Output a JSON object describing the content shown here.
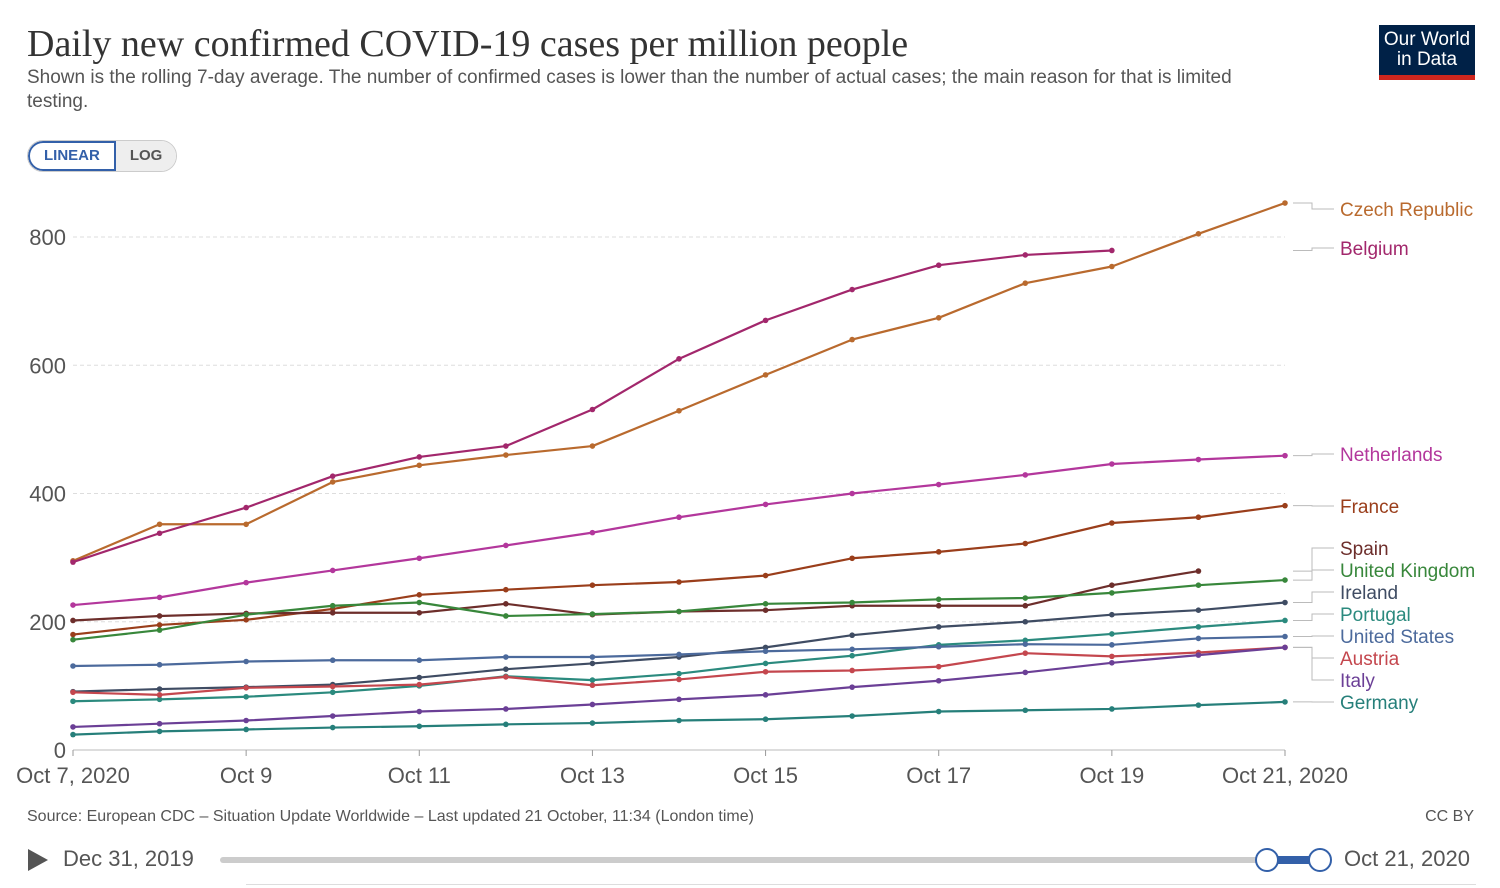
{
  "header": {
    "title": "Daily new confirmed COVID-19 cases per million people",
    "subtitle": "Shown is the rolling 7-day average. The number of confirmed cases is lower than the number of actual cases; the main reason for that is limited testing.",
    "logo_line1": "Our World",
    "logo_line2": "in Data"
  },
  "scale_toggle": {
    "linear_label": "LINEAR",
    "log_label": "LOG",
    "selected": "linear"
  },
  "footer": {
    "source": "Source: European CDC – Situation Update Worldwide – Last updated 21 October, 11:34 (London time)",
    "license": "CC BY"
  },
  "timeline": {
    "start_label": "Dec 31, 2019",
    "end_label": "Oct 21, 2020"
  },
  "chart_data": {
    "type": "line",
    "x": [
      "Oct 7",
      "Oct 8",
      "Oct 9",
      "Oct 10",
      "Oct 11",
      "Oct 12",
      "Oct 13",
      "Oct 14",
      "Oct 15",
      "Oct 16",
      "Oct 17",
      "Oct 18",
      "Oct 19",
      "Oct 20",
      "Oct 21"
    ],
    "x_tick_labels": [
      "Oct 7, 2020",
      "Oct 9",
      "Oct 11",
      "Oct 13",
      "Oct 15",
      "Oct 17",
      "Oct 19",
      "Oct 21, 2020"
    ],
    "x_tick_indices": [
      0,
      2,
      4,
      6,
      8,
      10,
      12,
      14
    ],
    "ylim": [
      0,
      800
    ],
    "y_ticks": [
      0,
      200,
      400,
      600,
      800
    ],
    "grid": "horizontal",
    "legend": "right-end labels",
    "series": [
      {
        "name": "Czech Republic",
        "color": "#b96a2e",
        "values": [
          295,
          352,
          352,
          418,
          444,
          460,
          474,
          529,
          585,
          640,
          674,
          728,
          754,
          805,
          853
        ]
      },
      {
        "name": "Belgium",
        "color": "#a2276c",
        "values": [
          293,
          338,
          378,
          427,
          457,
          474,
          531,
          610,
          670,
          718,
          756,
          772,
          779,
          null,
          null
        ]
      },
      {
        "name": "Netherlands",
        "color": "#b3379c",
        "values": [
          226,
          238,
          261,
          280,
          299,
          319,
          339,
          363,
          383,
          400,
          414,
          429,
          446,
          453,
          459
        ]
      },
      {
        "name": "France",
        "color": "#9a3e1b",
        "values": [
          180,
          195,
          203,
          220,
          242,
          250,
          257,
          262,
          272,
          299,
          309,
          322,
          354,
          363,
          381
        ]
      },
      {
        "name": "Spain",
        "color": "#6d2e2b",
        "values": [
          202,
          209,
          213,
          214,
          214,
          228,
          211,
          216,
          218,
          225,
          225,
          225,
          257,
          279,
          null
        ]
      },
      {
        "name": "United Kingdom",
        "color": "#38873b",
        "values": [
          172,
          187,
          211,
          225,
          230,
          209,
          212,
          216,
          228,
          230,
          235,
          237,
          245,
          257,
          265
        ]
      },
      {
        "name": "Ireland",
        "color": "#3f4c63",
        "values": [
          91,
          95,
          98,
          102,
          113,
          126,
          135,
          145,
          160,
          179,
          192,
          200,
          211,
          218,
          230
        ]
      },
      {
        "name": "Portugal",
        "color": "#2b8a7e",
        "values": [
          76,
          79,
          83,
          90,
          100,
          115,
          109,
          119,
          135,
          147,
          164,
          171,
          181,
          192,
          202
        ]
      },
      {
        "name": "United States",
        "color": "#4c6a9c",
        "values": [
          131,
          133,
          138,
          140,
          140,
          145,
          145,
          149,
          154,
          157,
          161,
          165,
          164,
          174,
          177
        ]
      },
      {
        "name": "Austria",
        "color": "#c4474e",
        "values": [
          90,
          86,
          97,
          99,
          102,
          114,
          101,
          110,
          122,
          124,
          130,
          151,
          146,
          152,
          160
        ]
      },
      {
        "name": "Italy",
        "color": "#6b3f96",
        "values": [
          36,
          41,
          46,
          53,
          60,
          64,
          71,
          79,
          86,
          98,
          108,
          121,
          136,
          148,
          160
        ]
      },
      {
        "name": "Germany",
        "color": "#267f7a",
        "values": [
          24,
          29,
          32,
          35,
          37,
          40,
          42,
          46,
          48,
          53,
          60,
          62,
          64,
          70,
          75
        ]
      }
    ]
  }
}
